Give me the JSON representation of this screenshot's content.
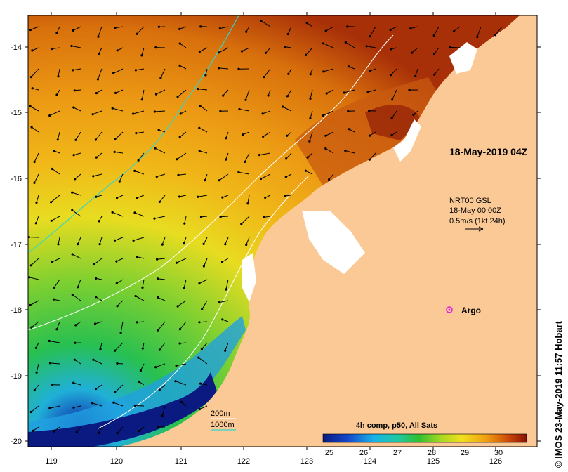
{
  "map": {
    "title": "18-May-2019 04Z",
    "credit": "© IMOS 23-May-2019 11:57 Hobart",
    "longitude_ticks": [
      "119",
      "120",
      "121",
      "122",
      "123",
      "124",
      "125",
      "126"
    ],
    "latitude_ticks": [
      "-14",
      "-15",
      "-16",
      "-17",
      "-18",
      "-19",
      "-20"
    ],
    "current_legend": {
      "line1": "NRT00 GSL",
      "line2": "18-May 00:00Z",
      "line3": "0.5m/s (1kt 24h)"
    },
    "argo_label": "Argo",
    "isobaths": {
      "shallow": "200m",
      "deep": "1000m",
      "shallow_color": "#ffffff",
      "deep_color": "#33d6c8"
    },
    "colorbar": {
      "title": "4h comp, p50, All Sats",
      "ticks": [
        "25",
        "26",
        "27",
        "28",
        "29",
        "30"
      ]
    },
    "colors": {
      "land": "#fbc996",
      "argo_marker": "#e020e0",
      "cold": "#0a2a9a",
      "warm": "#8a1008"
    }
  }
}
